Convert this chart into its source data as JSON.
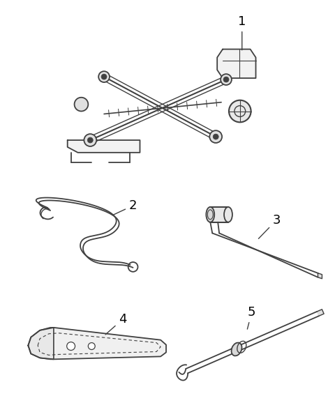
{
  "background_color": "#ffffff",
  "line_color": "#404040",
  "label_color": "#000000",
  "font_size": 12,
  "lw": 1.4
}
